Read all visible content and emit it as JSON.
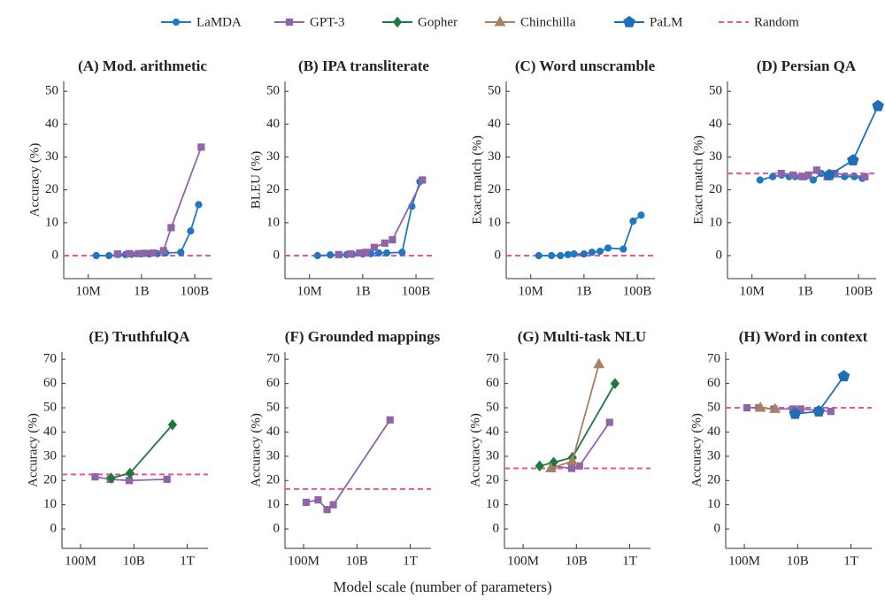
{
  "legend": [
    {
      "name": "LaMDA",
      "color": "#1f78c1",
      "marker": "circle"
    },
    {
      "name": "GPT-3",
      "color": "#8f64a8",
      "marker": "square"
    },
    {
      "name": "Gopher",
      "color": "#1d7a3c",
      "marker": "diamond"
    },
    {
      "name": "Chinchilla",
      "color": "#a88062",
      "marker": "triangle"
    },
    {
      "name": "PaLM",
      "color": "#1f6fb8",
      "marker": "pentagon"
    },
    {
      "name": "Random",
      "color": "#e8559a",
      "marker": "dash"
    }
  ],
  "xlabel": "Model scale (number of parameters)",
  "chart_data": [
    {
      "type": "line",
      "title": "(A) Mod. arithmetic",
      "ylabel": "Accuracy (%)",
      "xscale": "log",
      "xlim": [
        1200000,
        460000000000
      ],
      "ylim": [
        -7,
        53
      ],
      "xticks": [
        {
          "value": 10000000,
          "label": "10M"
        },
        {
          "value": 1000000000,
          "label": "1B"
        },
        {
          "value": 100000000000,
          "label": "100B"
        }
      ],
      "yticks": [
        0,
        10,
        20,
        30,
        40,
        50
      ],
      "random": 0,
      "series": [
        {
          "name": "LaMDA",
          "x": [
            20000000,
            60000000,
            130000000,
            250000000,
            420000000,
            1000000000,
            2000000000,
            4000000000,
            8000000000,
            30000000000,
            70000000000,
            140000000000
          ],
          "values": [
            0,
            0,
            0.3,
            0.3,
            0.4,
            0.5,
            0.5,
            0.6,
            0.8,
            1,
            7.5,
            15.5
          ]
        },
        {
          "name": "GPT-3",
          "x": [
            125000000,
            350000000,
            760000000,
            1300000000,
            2700000000,
            6700000000,
            13000000000,
            175000000000
          ],
          "values": [
            0.5,
            0.6,
            0.6,
            0.7,
            0.8,
            1.5,
            8.5,
            33
          ]
        }
      ]
    },
    {
      "type": "line",
      "title": "(B) IPA transliterate",
      "ylabel": "BLEU (%)",
      "xscale": "log",
      "xlim": [
        1200000,
        460000000000
      ],
      "ylim": [
        -7,
        53
      ],
      "xticks": [
        {
          "value": 10000000,
          "label": "10M"
        },
        {
          "value": 1000000000,
          "label": "1B"
        },
        {
          "value": 100000000000,
          "label": "100B"
        }
      ],
      "yticks": [
        0,
        10,
        20,
        30,
        40,
        50
      ],
      "random": 0,
      "series": [
        {
          "name": "LaMDA",
          "x": [
            20000000,
            60000000,
            130000000,
            250000000,
            420000000,
            1000000000,
            2000000000,
            4000000000,
            8000000000,
            30000000000,
            70000000000,
            140000000000
          ],
          "values": [
            0,
            0.2,
            0.3,
            0.3,
            0.4,
            0.5,
            0.6,
            0.8,
            0.8,
            1,
            15,
            22.5
          ]
        },
        {
          "name": "GPT-3",
          "x": [
            125000000,
            350000000,
            760000000,
            1300000000,
            2700000000,
            6700000000,
            13000000000,
            175000000000
          ],
          "values": [
            0.3,
            0.5,
            0.8,
            1,
            2.5,
            3.8,
            4.8,
            23
          ]
        }
      ]
    },
    {
      "type": "line",
      "title": "(C) Word unscramble",
      "ylabel": "Exact match (%)",
      "xscale": "log",
      "xlim": [
        1200000,
        460000000000
      ],
      "ylim": [
        -7,
        53
      ],
      "xticks": [
        {
          "value": 10000000,
          "label": "10M"
        },
        {
          "value": 1000000000,
          "label": "1B"
        },
        {
          "value": 100000000000,
          "label": "100B"
        }
      ],
      "yticks": [
        0,
        10,
        20,
        30,
        40,
        50
      ],
      "random": 0,
      "series": [
        {
          "name": "LaMDA",
          "x": [
            20000000,
            60000000,
            130000000,
            250000000,
            420000000,
            1000000000,
            2000000000,
            4000000000,
            8000000000,
            30000000000,
            70000000000,
            140000000000
          ],
          "values": [
            0,
            0,
            0,
            0.3,
            0.5,
            0.5,
            1,
            1.3,
            2.3,
            2,
            10.5,
            12.3
          ]
        }
      ]
    },
    {
      "type": "line",
      "title": "(D) Persian QA",
      "ylabel": "Exact match (%)",
      "xscale": "log",
      "xlim": [
        1200000,
        460000000000
      ],
      "ylim": [
        -7,
        53
      ],
      "xticks": [
        {
          "value": 10000000,
          "label": "10M"
        },
        {
          "value": 1000000000,
          "label": "1B"
        },
        {
          "value": 100000000000,
          "label": "100B"
        }
      ],
      "yticks": [
        0,
        10,
        20,
        30,
        40,
        50
      ],
      "random": 25,
      "series": [
        {
          "name": "LaMDA",
          "x": [
            20000000,
            60000000,
            130000000,
            250000000,
            420000000,
            1000000000,
            2000000000,
            4000000000,
            8000000000,
            30000000000,
            70000000000,
            140000000000
          ],
          "values": [
            23,
            24,
            24.5,
            24,
            24,
            24,
            23,
            25,
            24,
            24,
            24,
            23.5
          ]
        },
        {
          "name": "GPT-3",
          "x": [
            125000000,
            350000000,
            760000000,
            1300000000,
            2700000000,
            6700000000,
            13000000000,
            175000000000
          ],
          "values": [
            25,
            24.5,
            24,
            24.5,
            26,
            24,
            25,
            24
          ]
        },
        {
          "name": "PaLM",
          "x": [
            8000000000,
            62000000000,
            540000000000
          ],
          "values": [
            24.5,
            29,
            45.5
          ]
        }
      ]
    },
    {
      "type": "line",
      "title": "(E) TruthfulQA",
      "ylabel": "Accuracy (%)",
      "xscale": "log",
      "xlim": [
        20000000,
        6000000000000
      ],
      "ylim": [
        -8,
        73
      ],
      "xticks": [
        {
          "value": 100000000,
          "label": "100M"
        },
        {
          "value": 10000000000,
          "label": "10B"
        },
        {
          "value": 1000000000000,
          "label": "1T"
        }
      ],
      "yticks": [
        0,
        10,
        20,
        30,
        40,
        50,
        60,
        70
      ],
      "random": 22.5,
      "series": [
        {
          "name": "GPT-3",
          "x": [
            350000000,
            1300000000,
            6700000000,
            175000000000
          ],
          "values": [
            21.5,
            20.5,
            20,
            20.5
          ]
        },
        {
          "name": "Gopher",
          "x": [
            1400000000,
            7100000000,
            280000000000
          ],
          "values": [
            21,
            23,
            43
          ]
        }
      ]
    },
    {
      "type": "line",
      "title": "(F) Grounded mappings",
      "ylabel": "Accuracy (%)",
      "xscale": "log",
      "xlim": [
        20000000,
        6000000000000
      ],
      "ylim": [
        -8,
        73
      ],
      "xticks": [
        {
          "value": 100000000,
          "label": "100M"
        },
        {
          "value": 10000000000,
          "label": "10B"
        },
        {
          "value": 1000000000000,
          "label": "1T"
        }
      ],
      "yticks": [
        0,
        10,
        20,
        30,
        40,
        50,
        60,
        70
      ],
      "random": 16.5,
      "series": [
        {
          "name": "GPT-3",
          "x": [
            125000000,
            350000000,
            760000000,
            1300000000,
            175000000000
          ],
          "values": [
            11,
            12,
            8,
            10,
            45
          ]
        }
      ]
    },
    {
      "type": "line",
      "title": "(G) Multi-task NLU",
      "ylabel": "Accuracy (%)",
      "xscale": "log",
      "xlim": [
        20000000,
        6000000000000
      ],
      "ylim": [
        -8,
        73
      ],
      "xticks": [
        {
          "value": 100000000,
          "label": "100M"
        },
        {
          "value": 10000000000,
          "label": "10B"
        },
        {
          "value": 1000000000000,
          "label": "1T"
        }
      ],
      "yticks": [
        0,
        10,
        20,
        30,
        40,
        50,
        60,
        70
      ],
      "random": 25,
      "series": [
        {
          "name": "GPT-3",
          "x": [
            1300000000,
            6700000000,
            13000000000,
            175000000000
          ],
          "values": [
            26,
            25,
            26,
            44
          ]
        },
        {
          "name": "Gopher",
          "x": [
            417000000,
            1400000000,
            7100000000,
            280000000000
          ],
          "values": [
            26,
            27.5,
            29.5,
            60
          ]
        },
        {
          "name": "Chinchilla",
          "x": [
            1100000000,
            7000000000,
            70000000000
          ],
          "values": [
            25,
            28,
            68
          ]
        }
      ]
    },
    {
      "type": "line",
      "title": "(H) Word in context",
      "ylabel": "Accuracy (%)",
      "xscale": "log",
      "xlim": [
        20000000,
        6000000000000
      ],
      "ylim": [
        -8,
        73
      ],
      "xticks": [
        {
          "value": 100000000,
          "label": "100M"
        },
        {
          "value": 10000000000,
          "label": "10B"
        },
        {
          "value": 1000000000000,
          "label": "1T"
        }
      ],
      "yticks": [
        0,
        10,
        20,
        30,
        40,
        50,
        60,
        70
      ],
      "random": 50,
      "series": [
        {
          "name": "GPT-3",
          "x": [
            125000000,
            350000000,
            1300000000,
            6700000000,
            13000000000,
            175000000000
          ],
          "values": [
            50,
            50,
            49.5,
            49.5,
            49.5,
            48.5
          ]
        },
        {
          "name": "Chinchilla",
          "x": [
            400000000,
            1400000000
          ],
          "values": [
            50,
            49.5
          ]
        },
        {
          "name": "PaLM",
          "x": [
            8000000000,
            62000000000,
            540000000000
          ],
          "values": [
            47.5,
            48.5,
            63
          ]
        }
      ]
    }
  ]
}
